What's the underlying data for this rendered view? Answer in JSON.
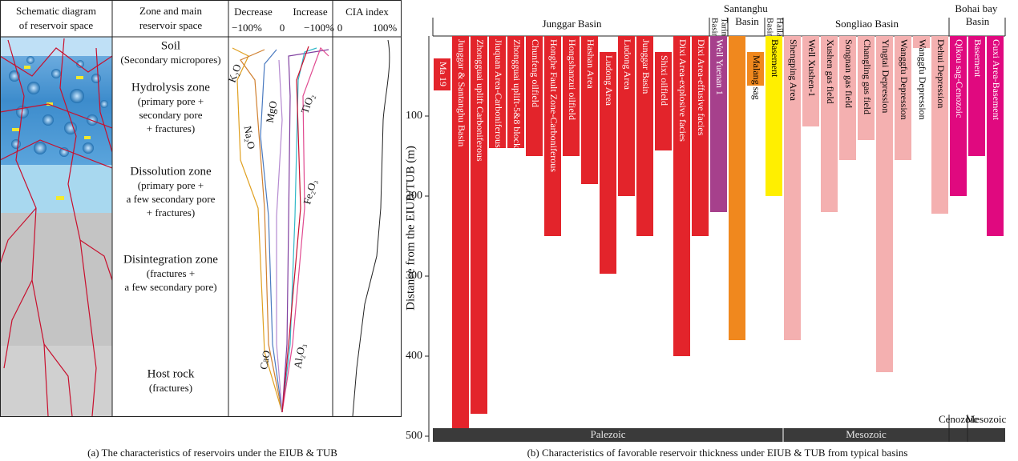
{
  "schematic": {
    "headers": [
      [
        "Schematic diagram",
        "of reservoir space"
      ],
      [
        "Zone and main",
        "reservoir space"
      ]
    ],
    "oxide_axis": {
      "decrease": "Decrease",
      "increase": "Increase",
      "ticks": [
        "−100%",
        "0",
        "−100%"
      ]
    },
    "cia_axis": {
      "title": "CIA index",
      "ticks": [
        "0",
        "100%"
      ]
    },
    "zones": [
      {
        "name": "Soil",
        "detail": [
          "(Secondary micropores)"
        ]
      },
      {
        "name": "Hydrolysis zone",
        "detail": [
          "(primary pore +",
          "secondary pore",
          "+ fractures)"
        ]
      },
      {
        "name": "Dissolution zone",
        "detail": [
          "(primary pore +",
          "a few secondary pore",
          "+ fractures)"
        ]
      },
      {
        "name": "Disintegration zone",
        "detail": [
          "(fractures +",
          "a few secondary pore)"
        ]
      },
      {
        "name": "Host rock",
        "detail": [
          "(fractures)"
        ]
      }
    ],
    "oxides": [
      "K₂O",
      "MgO",
      "Na₂O",
      "TiO₂",
      "Fe₂O₃",
      "CaO",
      "Al₂O₃"
    ],
    "caption": "(a) The characteristics of reservoirs under the EIUB & TUB"
  },
  "chart_data": {
    "type": "floating-bar",
    "caption": "(b) Characteristics of favorable reservoir thickness under EIUB & TUB from typical basins",
    "y_label": "Distance from the EIUB/TUB (m)",
    "ylim": [
      0,
      507
    ],
    "yticks": [
      100,
      200,
      300,
      400,
      500
    ],
    "y_inverted": true,
    "groups": [
      {
        "name": "Junggar Basin",
        "color": "#e3242b",
        "label_color": "#ffffff",
        "bars": [
          {
            "label": "Ma 19",
            "from": 28,
            "to": 68
          },
          {
            "label": "Junggar & Santanghu Basin",
            "from": 0,
            "to": 507
          },
          {
            "label": "Zhongguai uplift Carboniferous",
            "from": 0,
            "to": 472
          },
          {
            "label": "Jiuquan Area-Carboniferous",
            "from": 0,
            "to": 140
          },
          {
            "label": "Zhongguai uplift-5&8 block",
            "from": 0,
            "to": 140
          },
          {
            "label": "Chunfeng oilfield",
            "from": 0,
            "to": 150
          },
          {
            "label": "Honghe Fault Zone-Carboniferous",
            "from": 0,
            "to": 250
          },
          {
            "label": "Hongshanzui oilfield",
            "from": 0,
            "to": 150
          },
          {
            "label": "Hashan Area",
            "from": 0,
            "to": 185
          },
          {
            "label": "Ludong Area",
            "from": 20,
            "to": 297
          },
          {
            "label": "Ludong Area",
            "from": 0,
            "to": 200
          },
          {
            "label": "Junggar Basin",
            "from": 0,
            "to": 250
          },
          {
            "label": "Shixi oilfield",
            "from": 20,
            "to": 143
          },
          {
            "label": "Dixi Area-explosive facies",
            "from": 0,
            "to": 400
          },
          {
            "label": "Dixi Area-effusive facies",
            "from": 0,
            "to": 250
          }
        ]
      },
      {
        "name": "Tarim Basin",
        "color": "#a6408c",
        "label_color": "#ffffff",
        "bars": [
          {
            "label": "Well Yuenan 1",
            "from": 0,
            "to": 220
          }
        ]
      },
      {
        "name": "Santanghu Basin",
        "color": "#f0881e",
        "label_color": "#000000",
        "bars": [
          {
            "label": null,
            "from": 0,
            "to": 380
          },
          {
            "label": "Malang sag",
            "from": 20,
            "to": 62
          }
        ]
      },
      {
        "name": "Hailar Basin",
        "color": "#ffef00",
        "label_color": "#000000",
        "bars": [
          {
            "label": "Basement",
            "from": 0,
            "to": 200
          }
        ]
      },
      {
        "name": "Songliao Basin",
        "color": "#f4b0b0",
        "label_color": "#000000",
        "bars": [
          {
            "label": "Shengping Area",
            "from": 0,
            "to": 380
          },
          {
            "label": "Well Xushen-1",
            "from": 0,
            "to": 113
          },
          {
            "label": "Xushen gas field",
            "from": 0,
            "to": 220
          },
          {
            "label": "Songnan gas field",
            "from": 0,
            "to": 155
          },
          {
            "label": "Changling gas field",
            "from": 0,
            "to": 130
          },
          {
            "label": "Yingtai Depression",
            "from": 0,
            "to": 420
          },
          {
            "label": "Wanggfu Depression",
            "from": 0,
            "to": 155
          },
          {
            "label": "Wanggfu Depression",
            "from": 0,
            "to": 15
          },
          {
            "label": "Dehui Depression",
            "from": 0,
            "to": 222
          }
        ]
      },
      {
        "name": "Bohai bay Basin",
        "color": "#e0097f",
        "label_color": "#ffffff",
        "bars": [
          {
            "label": "Qikou sag-Cenozoic",
            "from": 0,
            "to": 200
          },
          {
            "label": "Basement",
            "from": 0,
            "to": 150
          },
          {
            "label": "Guxi Area-Basement",
            "from": 0,
            "to": 250
          }
        ]
      }
    ],
    "eras": [
      "Palezoic",
      "Mesozoic",
      "Cenozoic",
      "Mesozoic"
    ]
  }
}
